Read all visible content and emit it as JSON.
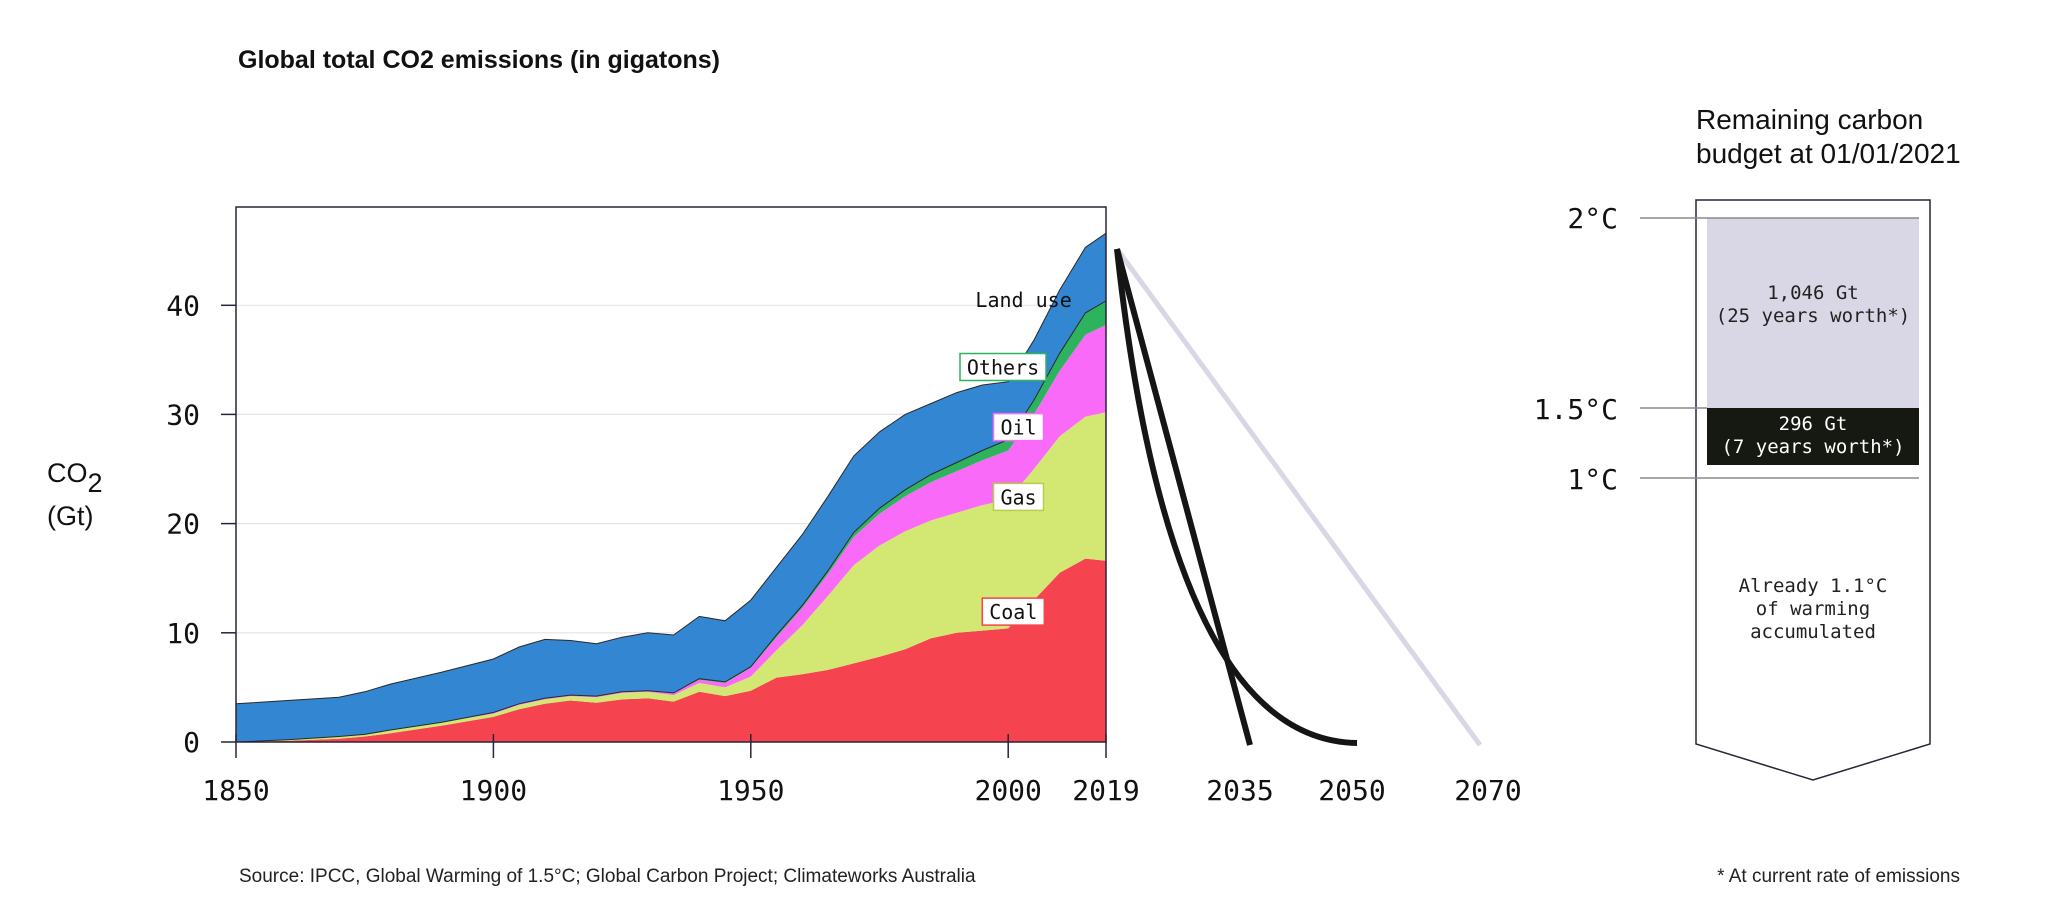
{
  "title": "Global total CO2 emissions (in gigatons)",
  "source": "Source: IPCC, Global Warming of 1.5°C; Global Carbon Project; Climateworks Australia",
  "footnote": "* At current rate of emissions",
  "chart_data": {
    "type": "area",
    "stacked": true,
    "xlabel": "",
    "ylabel_main": "CO",
    "ylabel_sub": "2",
    "ylabel_unit": "(Gt)",
    "xlim": [
      1850,
      2019
    ],
    "ylim": [
      0,
      49
    ],
    "yticks": [
      0,
      10,
      20,
      30,
      40
    ],
    "xticks": [
      1850,
      1900,
      1950,
      2000,
      2019
    ],
    "projection_xticks": [
      2035,
      2050,
      2070
    ],
    "grid": true,
    "x": [
      1850,
      1860,
      1870,
      1875,
      1880,
      1890,
      1900,
      1905,
      1910,
      1915,
      1920,
      1925,
      1930,
      1935,
      1940,
      1945,
      1950,
      1955,
      1960,
      1965,
      1970,
      1975,
      1980,
      1985,
      1990,
      1995,
      2000,
      2005,
      2010,
      2015,
      2019
    ],
    "series": [
      {
        "name": "Coal",
        "color": "#f5444f",
        "values": [
          0.0,
          0.1,
          0.3,
          0.5,
          0.8,
          1.5,
          2.3,
          3.0,
          3.5,
          3.8,
          3.6,
          3.9,
          4.0,
          3.7,
          4.6,
          4.2,
          4.7,
          5.9,
          6.2,
          6.6,
          7.2,
          7.8,
          8.5,
          9.5,
          10.0,
          10.2,
          10.4,
          13.0,
          15.5,
          16.8,
          16.6
        ]
      },
      {
        "name": "Gas",
        "color": "#d2e872",
        "values": [
          0.0,
          0.1,
          0.2,
          0.2,
          0.3,
          0.3,
          0.3,
          0.4,
          0.4,
          0.4,
          0.5,
          0.6,
          0.6,
          0.6,
          0.8,
          0.8,
          1.3,
          2.5,
          4.5,
          6.8,
          9.0,
          10.2,
          10.8,
          10.8,
          11.0,
          11.5,
          11.8,
          12.0,
          12.5,
          13.0,
          13.6
        ]
      },
      {
        "name": "Oil",
        "color": "#f96af8",
        "values": [
          0.0,
          0.0,
          0.0,
          0.0,
          0.0,
          0.0,
          0.1,
          0.1,
          0.1,
          0.1,
          0.1,
          0.1,
          0.1,
          0.2,
          0.3,
          0.4,
          0.8,
          1.2,
          1.6,
          2.0,
          2.6,
          2.9,
          3.2,
          3.5,
          3.8,
          4.1,
          4.5,
          5.0,
          6.0,
          7.5,
          8.0
        ]
      },
      {
        "name": "Others",
        "color": "#2db35d",
        "values": [
          0.0,
          0.0,
          0.0,
          0.0,
          0.0,
          0.0,
          0.0,
          0.0,
          0.0,
          0.0,
          0.0,
          0.0,
          0.0,
          0.0,
          0.1,
          0.1,
          0.1,
          0.2,
          0.2,
          0.3,
          0.4,
          0.5,
          0.6,
          0.7,
          0.8,
          0.9,
          1.0,
          1.3,
          1.6,
          2.0,
          2.2
        ]
      },
      {
        "name": "Land use",
        "color": "#3286d2",
        "values": [
          3.5,
          3.6,
          3.6,
          3.9,
          4.2,
          4.6,
          4.9,
          5.2,
          5.4,
          5.0,
          4.8,
          5.0,
          5.3,
          5.3,
          5.7,
          5.6,
          6.1,
          6.2,
          6.5,
          6.8,
          7.0,
          7.0,
          6.9,
          6.5,
          6.4,
          6.0,
          5.3,
          5.5,
          5.8,
          6.0,
          6.2
        ]
      }
    ],
    "area_labels": [
      {
        "name": "Land use",
        "x": 2003,
        "y": 40.5,
        "boxed": false
      },
      {
        "name": "Others",
        "x": 1999,
        "y": 34.3,
        "boxed": true,
        "border": "#2db35d"
      },
      {
        "name": "Oil",
        "x": 2002,
        "y": 28.8,
        "boxed": true,
        "border": "#f96af8"
      },
      {
        "name": "Gas",
        "x": 2002,
        "y": 22.4,
        "boxed": true,
        "border": "#b7cc4a"
      },
      {
        "name": "Coal",
        "x": 2001,
        "y": 11.9,
        "boxed": true,
        "border": "#f5444f"
      }
    ]
  },
  "budget": {
    "title_line1": "Remaining carbon",
    "title_line2": "budget at 01/01/2021",
    "levels": [
      {
        "label": "2°C"
      },
      {
        "label": "1.5°C"
      },
      {
        "label": "1°C"
      }
    ],
    "segment_2c_line1": "1,046 Gt",
    "segment_2c_line2": "(25 years worth*)",
    "segment_15c_line1": "296 Gt",
    "segment_15c_line2": "(7 years worth*)",
    "accumulated_line1": "Already 1.1°C",
    "accumulated_line2": "of warming",
    "accumulated_line3": "accumulated",
    "color_2c": "#d9d7e5",
    "color_15c": "#161812"
  }
}
